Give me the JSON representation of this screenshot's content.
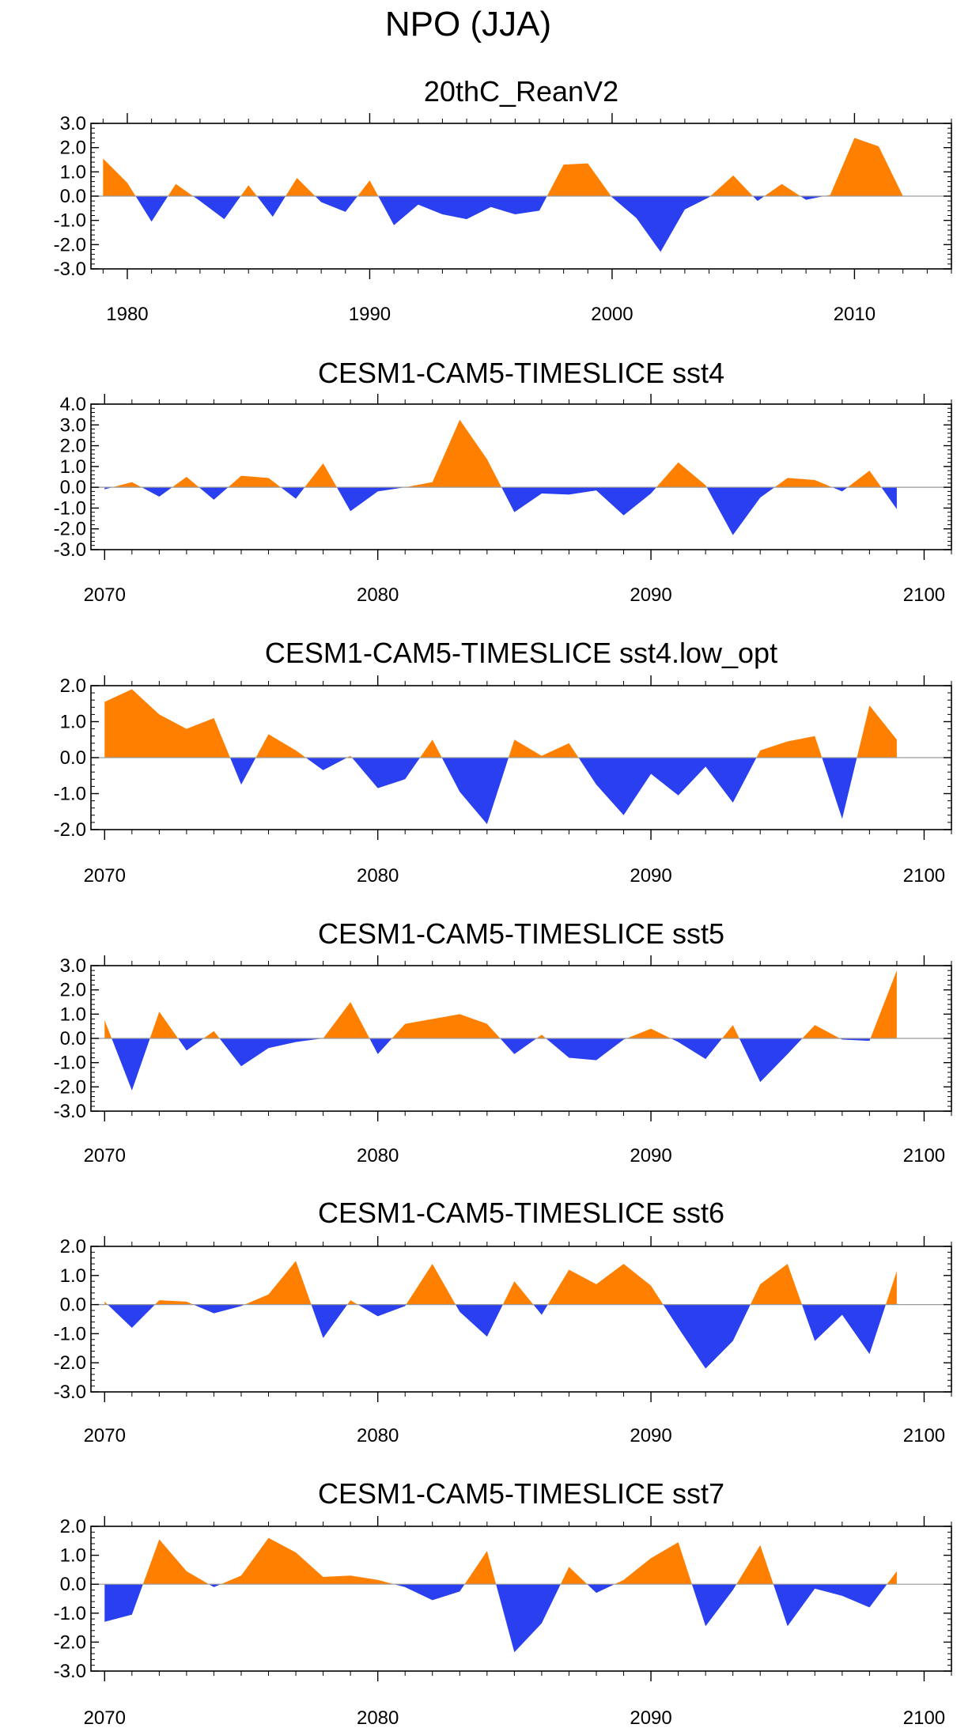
{
  "title": "NPO (JJA)",
  "colors": {
    "positive": "#ff8000",
    "negative": "#2a40f0",
    "axis": "#000000",
    "zero_line": "#9a9a9a"
  },
  "chart_data": [
    {
      "type": "area",
      "title": "20thC_ReanV2",
      "xlim": [
        1978.5,
        2014
      ],
      "ylim": [
        -3,
        3
      ],
      "yticks": [
        "3.0",
        "2.0",
        "1.0",
        "0.0",
        "-1.0",
        "-2.0",
        "-3.0"
      ],
      "yticks_values": [
        3,
        2,
        1,
        0,
        -1,
        -2,
        -3
      ],
      "xticks": [
        1980,
        1990,
        2000,
        2010
      ],
      "xticks_labels": [
        "1980",
        "1990",
        "2000",
        "2010"
      ],
      "x_start": 1979,
      "values": [
        1.55,
        0.55,
        -1.05,
        0.5,
        -0.2,
        -0.95,
        0.45,
        -0.85,
        0.75,
        -0.25,
        -0.65,
        0.65,
        -1.2,
        -0.35,
        -0.75,
        -0.95,
        -0.45,
        -0.75,
        -0.6,
        1.3,
        1.35,
        -0.05,
        -0.9,
        -2.3,
        -0.55,
        -0.05,
        0.85,
        -0.2,
        0.5,
        -0.15,
        0.05,
        2.4,
        2.05,
        0.0
      ]
    },
    {
      "type": "area",
      "title": "CESM1-CAM5-TIMESLICE sst4",
      "xlim": [
        2069.5,
        2101
      ],
      "ylim": [
        -3,
        4
      ],
      "yticks": [
        "4.0",
        "3.0",
        "2.0",
        "1.0",
        "0.0",
        "-1.0",
        "-2.0",
        "-3.0"
      ],
      "yticks_values": [
        4,
        3,
        2,
        1,
        0,
        -1,
        -2,
        -3
      ],
      "xticks": [
        2070,
        2080,
        2090,
        2100
      ],
      "xticks_labels": [
        "2070",
        "2080",
        "2090",
        "2100"
      ],
      "x_start": 2070,
      "values": [
        -0.1,
        0.25,
        -0.45,
        0.5,
        -0.6,
        0.55,
        0.45,
        -0.55,
        1.15,
        -1.15,
        -0.2,
        0.0,
        0.25,
        3.25,
        1.35,
        -1.2,
        -0.3,
        -0.35,
        -0.15,
        -1.35,
        -0.3,
        1.2,
        0.1,
        -2.3,
        -0.5,
        0.45,
        0.35,
        -0.2,
        0.8,
        -1.05
      ]
    },
    {
      "type": "area",
      "title": "CESM1-CAM5-TIMESLICE sst4.low_opt",
      "xlim": [
        2069.5,
        2101
      ],
      "ylim": [
        -2,
        2
      ],
      "yticks": [
        "2.0",
        "1.0",
        "0.0",
        "-1.0",
        "-2.0"
      ],
      "yticks_values": [
        2,
        1,
        0,
        -1,
        -2
      ],
      "xticks": [
        2070,
        2080,
        2090,
        2100
      ],
      "xticks_labels": [
        "2070",
        "2080",
        "2090",
        "2100"
      ],
      "x_start": 2070,
      "values": [
        1.55,
        1.9,
        1.2,
        0.8,
        1.1,
        -0.75,
        0.65,
        0.2,
        -0.35,
        0.05,
        -0.85,
        -0.6,
        0.5,
        -0.95,
        -1.85,
        0.5,
        0.05,
        0.4,
        -0.75,
        -1.6,
        -0.45,
        -1.05,
        -0.25,
        -1.25,
        0.2,
        0.45,
        0.6,
        -1.7,
        1.45,
        0.5
      ]
    },
    {
      "type": "area",
      "title": "CESM1-CAM5-TIMESLICE sst5",
      "xlim": [
        2069.5,
        2101
      ],
      "ylim": [
        -3,
        3
      ],
      "yticks": [
        "3.0",
        "2.0",
        "1.0",
        "0.0",
        "-1.0",
        "-2.0",
        "-3.0"
      ],
      "yticks_values": [
        3,
        2,
        1,
        0,
        -1,
        -2,
        -3
      ],
      "xticks": [
        2070,
        2080,
        2090,
        2100
      ],
      "xticks_labels": [
        "2070",
        "2080",
        "2090",
        "2100"
      ],
      "x_start": 2070,
      "values": [
        0.75,
        -2.15,
        1.1,
        -0.5,
        0.3,
        -1.15,
        -0.4,
        -0.15,
        0.0,
        1.5,
        -0.65,
        0.6,
        0.8,
        1.0,
        0.6,
        -0.65,
        0.15,
        -0.8,
        -0.9,
        -0.05,
        0.4,
        -0.15,
        -0.85,
        0.55,
        -1.8,
        -0.65,
        0.55,
        -0.05,
        -0.1,
        2.8
      ]
    },
    {
      "type": "area",
      "title": "CESM1-CAM5-TIMESLICE sst6",
      "xlim": [
        2069.5,
        2101
      ],
      "ylim": [
        -3,
        2
      ],
      "yticks": [
        "2.0",
        "1.0",
        "0.0",
        "-1.0",
        "-2.0",
        "-3.0"
      ],
      "yticks_values": [
        2,
        1,
        0,
        -1,
        -2,
        -3
      ],
      "xticks": [
        2070,
        2080,
        2090,
        2100
      ],
      "xticks_labels": [
        "2070",
        "2080",
        "2090",
        "2100"
      ],
      "x_start": 2070,
      "values": [
        0.1,
        -0.8,
        0.15,
        0.1,
        -0.3,
        -0.05,
        0.35,
        1.5,
        -1.15,
        0.15,
        -0.4,
        -0.05,
        1.4,
        -0.25,
        -1.1,
        0.8,
        -0.35,
        1.2,
        0.7,
        1.4,
        0.65,
        -0.8,
        -2.2,
        -1.25,
        0.7,
        1.4,
        -1.25,
        -0.35,
        -1.7,
        1.15
      ]
    },
    {
      "type": "area",
      "title": "CESM1-CAM5-TIMESLICE sst7",
      "xlim": [
        2069.5,
        2101
      ],
      "ylim": [
        -3,
        2
      ],
      "yticks": [
        "2.0",
        "1.0",
        "0.0",
        "-1.0",
        "-2.0",
        "-3.0"
      ],
      "yticks_values": [
        2,
        1,
        0,
        -1,
        -2,
        -3
      ],
      "xticks": [
        2070,
        2080,
        2090,
        2100
      ],
      "xticks_labels": [
        "2070",
        "2080",
        "2090",
        "2100"
      ],
      "x_start": 2070,
      "values": [
        -1.3,
        -1.05,
        1.55,
        0.45,
        -0.1,
        0.3,
        1.6,
        1.1,
        0.25,
        0.3,
        0.15,
        -0.1,
        -0.55,
        -0.25,
        1.15,
        -2.35,
        -1.35,
        0.6,
        -0.3,
        0.15,
        0.9,
        1.45,
        -1.45,
        -0.2,
        1.35,
        -1.45,
        -0.15,
        -0.4,
        -0.8,
        0.45
      ]
    }
  ]
}
